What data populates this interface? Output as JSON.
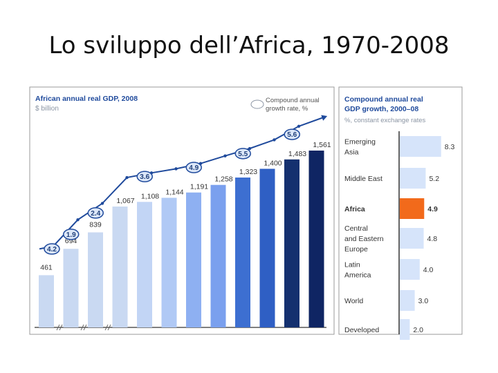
{
  "slide": {
    "title": "Lo sviluppo dell’Africa, 1970-2008"
  },
  "chart_data": [
    {
      "type": "bar",
      "title": "African annual real GDP, 2008",
      "subtitle": "$ billion",
      "legend": "Compound annual growth rate, %",
      "legend_lines": [
        "Compound annual",
        "growth rate, %"
      ],
      "values": [
        461,
        694,
        839,
        1067,
        1108,
        1144,
        1191,
        1258,
        1323,
        1400,
        1483,
        1561
      ],
      "value_labels": [
        "461",
        "694",
        "839",
        "1,067",
        "1,108",
        "1,144",
        "1,191",
        "1,258",
        "1,323",
        "1,400",
        "1,483",
        "1,561"
      ],
      "growth_rates": [
        {
          "label": "4.2",
          "after_bar": 0
        },
        {
          "label": "1.9",
          "after_bar": 1
        },
        {
          "label": "2.4",
          "after_bar": 2
        },
        {
          "label": "3.6",
          "after_bar": 4
        },
        {
          "label": "4.9",
          "after_bar": 6
        },
        {
          "label": "5.5",
          "after_bar": 8
        },
        {
          "label": "5.6",
          "after_bar": 10
        }
      ],
      "colors": [
        "#c9d9f2",
        "#c9d9f2",
        "#c9d9f2",
        "#c9d9f2",
        "#c2d5f5",
        "#b0c9f5",
        "#8eb0f2",
        "#7aa0ee",
        "#3d6fd1",
        "#2f5fc4",
        "#14306f",
        "#0f2563"
      ],
      "line_color": "#1f4a9c"
    },
    {
      "type": "bar",
      "orientation": "horizontal",
      "title": "Compound annual real GDP growth, 2000–08",
      "title_lines": [
        "Compound annual real",
        "GDP growth, 2000–08"
      ],
      "subtitle": "%, constant exchange rates",
      "categories": [
        {
          "lines": [
            "Emerging",
            "Asia"
          ],
          "value": 8.3,
          "label": "8.3",
          "highlight": false
        },
        {
          "lines": [
            "Middle East"
          ],
          "value": 5.2,
          "label": "5.2",
          "highlight": false
        },
        {
          "lines": [
            "Africa"
          ],
          "value": 4.9,
          "label": "4.9",
          "highlight": true
        },
        {
          "lines": [
            "Central",
            "and Eastern",
            "Europe"
          ],
          "value": 4.8,
          "label": "4.8",
          "highlight": false
        },
        {
          "lines": [
            "Latin",
            "America"
          ],
          "value": 4.0,
          "label": "4.0",
          "highlight": false
        },
        {
          "lines": [
            "World"
          ],
          "value": 3.0,
          "label": "3.0",
          "highlight": false
        },
        {
          "lines": [
            "Developed"
          ],
          "value": 2.0,
          "label": "2.0",
          "highlight": false
        }
      ],
      "colors": {
        "bar": "#d6e4fa",
        "highlight": "#f26a1b",
        "title": "#1f4a9c",
        "subtitle": "#8a94a3"
      }
    }
  ]
}
